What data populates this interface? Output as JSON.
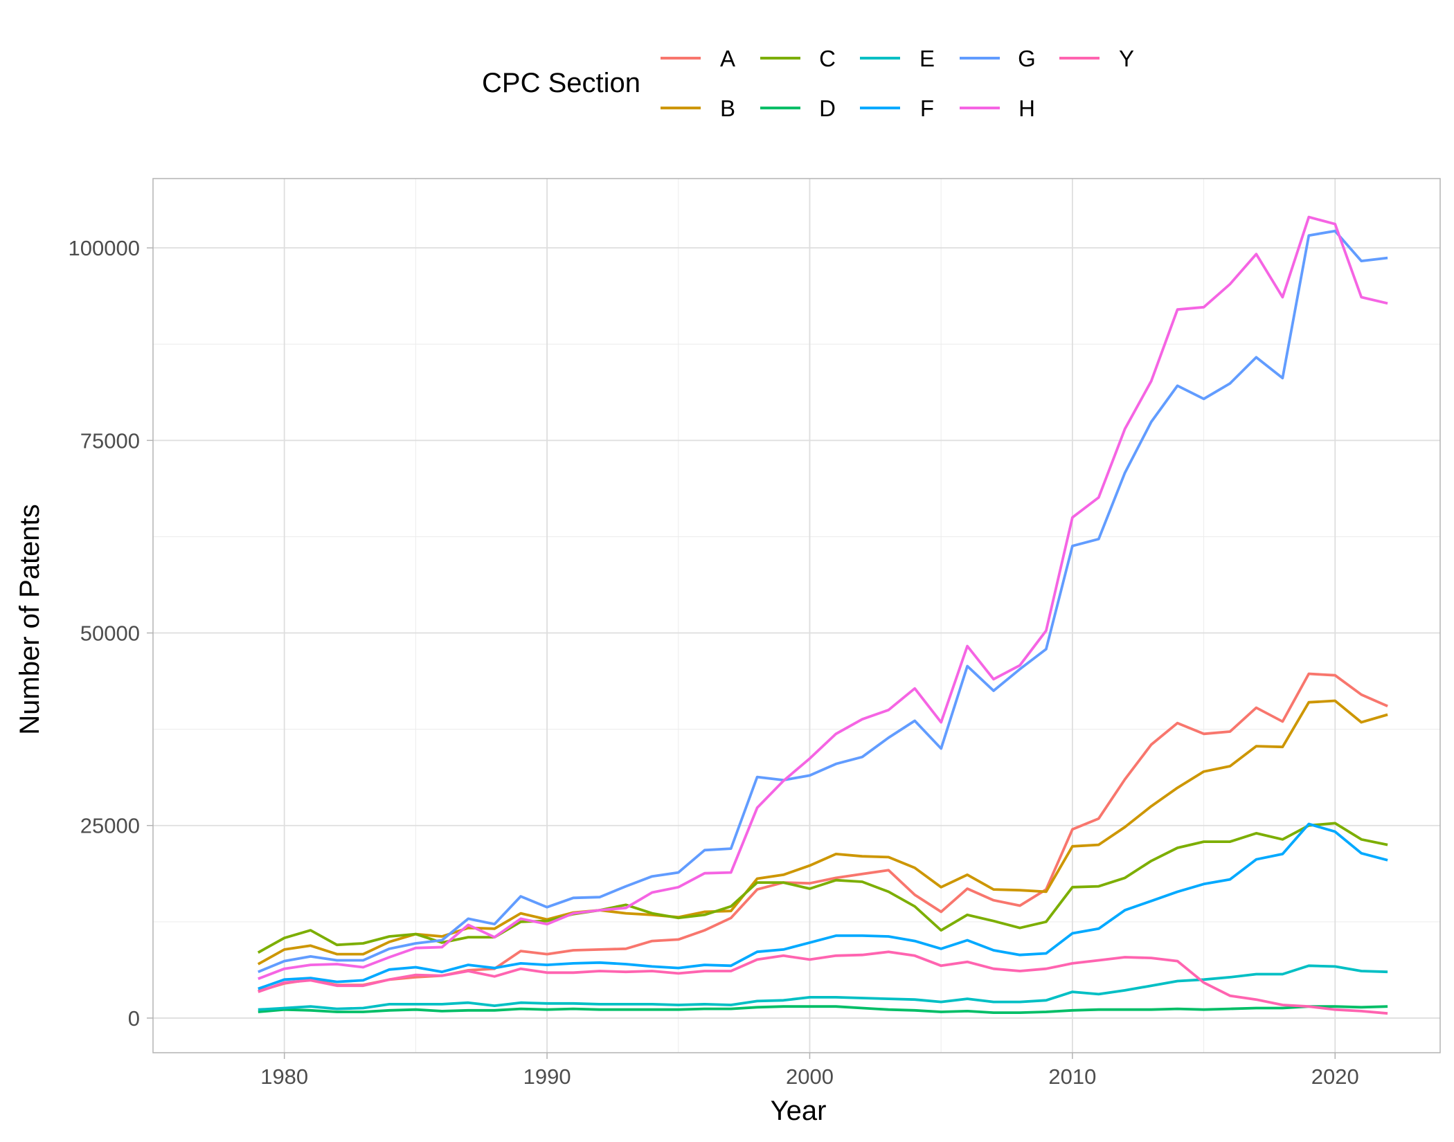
{
  "chart_data": {
    "type": "line",
    "xlabel": "Year",
    "ylabel": "Number of Patents",
    "xlim": [
      1975,
      2024
    ],
    "ylim": [
      -4500,
      109000
    ],
    "x_ticks": [
      1980,
      1990,
      2000,
      2010,
      2020
    ],
    "y_ticks": [
      0,
      25000,
      50000,
      75000,
      100000
    ],
    "x_tick_labels": [
      "1980",
      "1990",
      "2000",
      "2010",
      "2020"
    ],
    "y_tick_labels": [
      "0",
      "25000",
      "50000",
      "75000",
      "100000"
    ],
    "grid": true,
    "legend": {
      "title": "CPC Section",
      "position": "top"
    },
    "x": [
      1979,
      1980,
      1981,
      1982,
      1983,
      1984,
      1985,
      1986,
      1987,
      1988,
      1989,
      1990,
      1991,
      1992,
      1993,
      1994,
      1995,
      1996,
      1997,
      1998,
      1999,
      2000,
      2001,
      2002,
      2003,
      2004,
      2005,
      2006,
      2007,
      2008,
      2009,
      2010,
      2011,
      2012,
      2013,
      2014,
      2015,
      2016,
      2017,
      2018,
      2019,
      2020,
      2021,
      2022
    ],
    "series": [
      {
        "name": "A",
        "color": "#F8766D",
        "values": [
          3500,
          4500,
          5000,
          4300,
          4300,
          5000,
          5300,
          5500,
          6200,
          6400,
          8700,
          8300,
          8800,
          8900,
          9000,
          10000,
          10200,
          11400,
          13000,
          16700,
          17600,
          17500,
          18200,
          18700,
          19200,
          16000,
          13800,
          16800,
          15300,
          14600,
          16700,
          24500,
          25900,
          31000,
          35500,
          38300,
          36900,
          37200,
          40300,
          38500,
          44700,
          44500,
          42000,
          40500
        ]
      },
      {
        "name": "B",
        "color": "#CD9600",
        "values": [
          7000,
          8900,
          9400,
          8300,
          8300,
          9900,
          10900,
          10600,
          11700,
          11600,
          13600,
          12800,
          13700,
          14000,
          13600,
          13400,
          13100,
          13800,
          13900,
          18100,
          18600,
          19800,
          21300,
          21000,
          20900,
          19500,
          17000,
          18600,
          16700,
          16600,
          16400,
          22300,
          22500,
          24800,
          27500,
          29900,
          32000,
          32700,
          35300,
          35200,
          41000,
          41200,
          38400,
          39400
        ]
      },
      {
        "name": "C",
        "color": "#7CAE00",
        "values": [
          8500,
          10400,
          11400,
          9500,
          9700,
          10600,
          10900,
          9800,
          10500,
          10500,
          12500,
          12600,
          13500,
          14000,
          14700,
          13600,
          13000,
          13400,
          14500,
          17600,
          17600,
          16800,
          17900,
          17700,
          16400,
          14500,
          11400,
          13400,
          12600,
          11700,
          12500,
          17000,
          17100,
          18200,
          20400,
          22100,
          22900,
          22900,
          24000,
          23200,
          25000,
          25300,
          23200,
          22500
        ]
      },
      {
        "name": "D",
        "color": "#00BE67",
        "values": [
          800,
          1100,
          1000,
          800,
          800,
          1000,
          1100,
          900,
          1000,
          1000,
          1200,
          1100,
          1200,
          1100,
          1100,
          1100,
          1100,
          1200,
          1200,
          1400,
          1500,
          1500,
          1500,
          1300,
          1100,
          1000,
          800,
          900,
          700,
          700,
          800,
          1000,
          1100,
          1100,
          1100,
          1200,
          1100,
          1200,
          1300,
          1300,
          1500,
          1500,
          1400,
          1500
        ]
      },
      {
        "name": "E",
        "color": "#00BFC4",
        "values": [
          1100,
          1300,
          1500,
          1200,
          1300,
          1800,
          1800,
          1800,
          2000,
          1600,
          2000,
          1900,
          1900,
          1800,
          1800,
          1800,
          1700,
          1800,
          1700,
          2200,
          2300,
          2700,
          2700,
          2600,
          2500,
          2400,
          2100,
          2500,
          2100,
          2100,
          2300,
          3400,
          3100,
          3600,
          4200,
          4800,
          5000,
          5300,
          5700,
          5700,
          6800,
          6700,
          6100,
          6000
        ]
      },
      {
        "name": "F",
        "color": "#00A9FF",
        "values": [
          3800,
          5000,
          5200,
          4700,
          4900,
          6300,
          6600,
          6000,
          6900,
          6500,
          7100,
          6900,
          7100,
          7200,
          7000,
          6700,
          6500,
          6900,
          6800,
          8600,
          8900,
          9800,
          10700,
          10700,
          10600,
          10000,
          9000,
          10100,
          8800,
          8200,
          8400,
          11000,
          11600,
          14000,
          15200,
          16400,
          17400,
          18000,
          20600,
          21300,
          25200,
          24200,
          21400,
          20500
        ]
      },
      {
        "name": "G",
        "color": "#619CFF",
        "values": [
          6000,
          7400,
          8000,
          7500,
          7500,
          9000,
          9700,
          10100,
          12900,
          12200,
          15800,
          14400,
          15600,
          15700,
          17100,
          18400,
          18900,
          21800,
          22000,
          31300,
          30900,
          31500,
          33000,
          33900,
          36400,
          38600,
          35000,
          45700,
          42500,
          45300,
          47900,
          61300,
          62200,
          70800,
          77400,
          82100,
          80400,
          82400,
          85800,
          83100,
          101600,
          102200,
          98300,
          98700
        ]
      },
      {
        "name": "H",
        "color": "#F564E3",
        "values": [
          5100,
          6400,
          6900,
          7000,
          6600,
          7900,
          9100,
          9200,
          12100,
          10500,
          12900,
          12200,
          13600,
          14000,
          14300,
          16300,
          17000,
          18800,
          18900,
          27300,
          30800,
          33700,
          36900,
          38800,
          40000,
          42800,
          38400,
          48300,
          44000,
          45800,
          50300,
          65000,
          67600,
          76500,
          82700,
          92000,
          92300,
          95300,
          99200,
          93600,
          104000,
          103100,
          93600,
          92800
        ]
      },
      {
        "name": "Y",
        "color": "#FF64B0",
        "values": [
          3400,
          4600,
          4900,
          4200,
          4200,
          5000,
          5600,
          5500,
          6100,
          5400,
          6400,
          5900,
          5900,
          6100,
          6000,
          6100,
          5800,
          6100,
          6100,
          7600,
          8100,
          7600,
          8100,
          8200,
          8600,
          8100,
          6800,
          7300,
          6400,
          6100,
          6400,
          7100,
          7500,
          7900,
          7800,
          7400,
          4600,
          2900,
          2400,
          1700,
          1500,
          1100,
          900,
          600
        ]
      }
    ]
  }
}
